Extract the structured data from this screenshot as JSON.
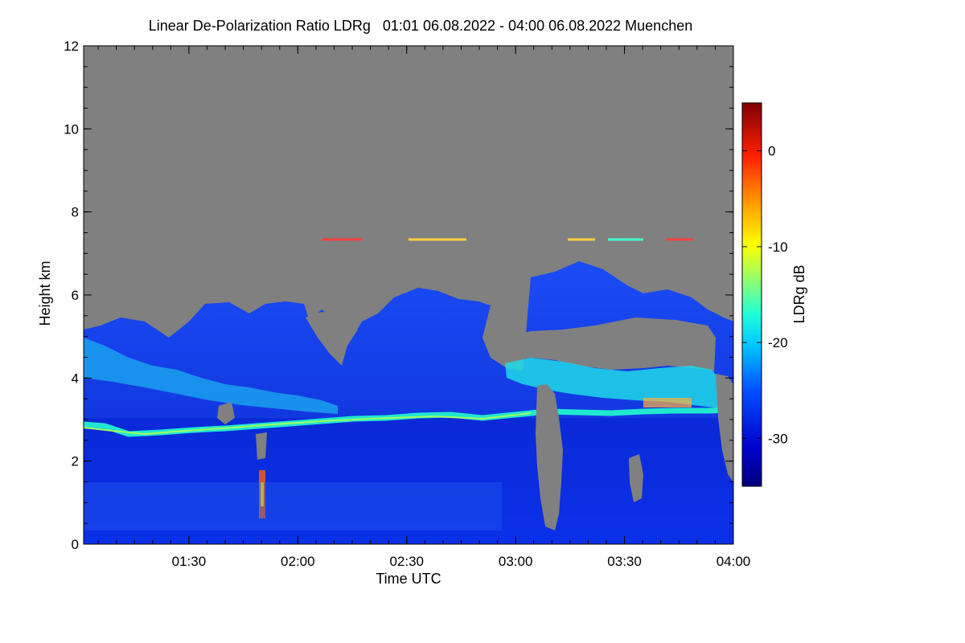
{
  "chart_data": {
    "type": "heatmap",
    "title": "Linear De-Polarization Ratio LDRg   01:01 06.08.2022 - 04:00 06.08.2022 Muenchen",
    "xlabel": "Time UTC",
    "ylabel": "Height km",
    "xlim": [
      "01:01",
      "04:00"
    ],
    "ylim": [
      0,
      12
    ],
    "x_ticks": [
      "01:30",
      "02:00",
      "02:30",
      "03:00",
      "03:30",
      "04:00"
    ],
    "y_ticks": [
      0,
      2,
      4,
      6,
      8,
      10,
      12
    ],
    "colorbar": {
      "label": "LDRg dB",
      "range": [
        -35,
        5
      ],
      "ticks": [
        0,
        -10,
        -20,
        -30
      ]
    },
    "features": [
      {
        "name": "boundary layer (low LDR, blue)",
        "height_km": [
          0,
          2.8
        ]
      },
      {
        "name": "aerosol layer top (cyan/green band)",
        "height_km": [
          2.6,
          3.2
        ]
      },
      {
        "name": "lofted layer (blue, variable top)",
        "height_km": [
          3.0,
          6.5
        ]
      },
      {
        "name": "thin cloud at ~7.3 km (high LDR)",
        "height_km": [
          7.3,
          7.3
        ]
      }
    ],
    "colors": {
      "no_data": "#808080",
      "low": "#0000cc",
      "mid": "#00e5e5",
      "high": "#cc0000"
    }
  }
}
